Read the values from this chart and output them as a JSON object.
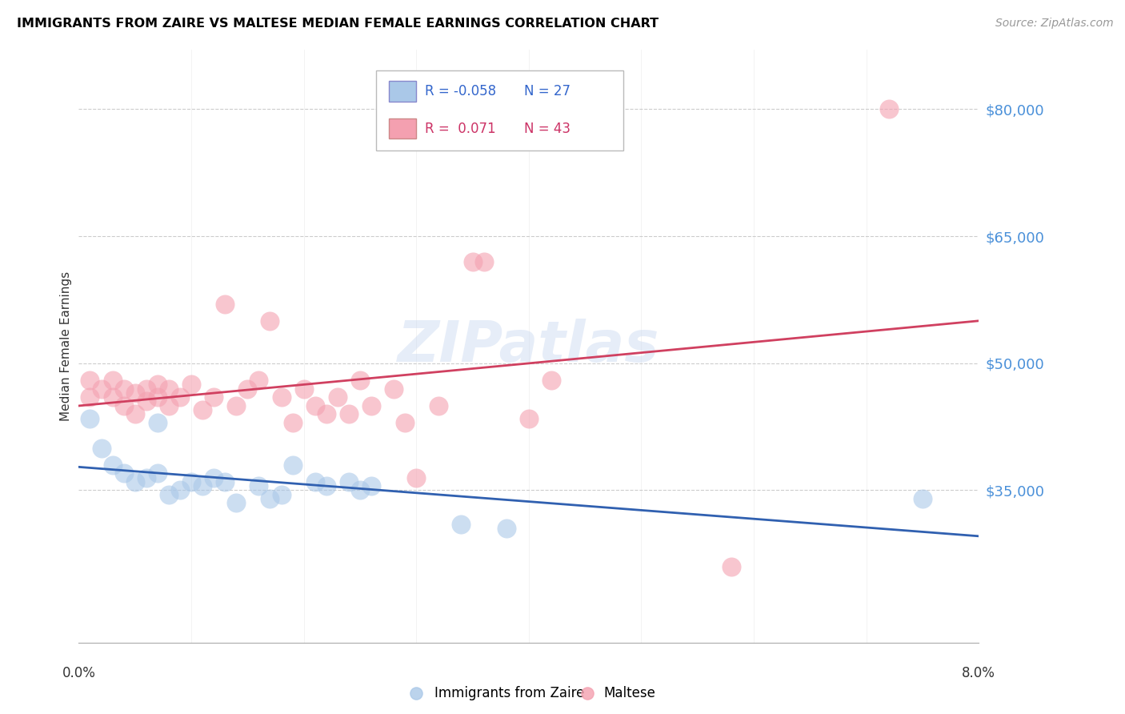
{
  "title": "IMMIGRANTS FROM ZAIRE VS MALTESE MEDIAN FEMALE EARNINGS CORRELATION CHART",
  "source": "Source: ZipAtlas.com",
  "ylabel": "Median Female Earnings",
  "xlim": [
    0.0,
    0.08
  ],
  "ylim": [
    17000,
    87000
  ],
  "legend_blue_r": "-0.058",
  "legend_blue_n": "27",
  "legend_pink_r": "0.071",
  "legend_pink_n": "43",
  "legend_label_blue": "Immigrants from Zaire",
  "legend_label_pink": "Maltese",
  "blue_color": "#aac8e8",
  "pink_color": "#f4a0b0",
  "blue_line_color": "#3060b0",
  "pink_line_color": "#d04060",
  "grid_vals": [
    35000,
    50000,
    65000,
    80000
  ],
  "blue_scatter_x": [
    0.001,
    0.002,
    0.003,
    0.004,
    0.005,
    0.006,
    0.007,
    0.007,
    0.008,
    0.009,
    0.01,
    0.011,
    0.012,
    0.013,
    0.014,
    0.016,
    0.017,
    0.018,
    0.019,
    0.021,
    0.022,
    0.024,
    0.025,
    0.026,
    0.034,
    0.038,
    0.075
  ],
  "blue_scatter_y": [
    43500,
    40000,
    38000,
    37000,
    36000,
    36500,
    37000,
    43000,
    34500,
    35000,
    36000,
    35500,
    36500,
    36000,
    33500,
    35500,
    34000,
    34500,
    38000,
    36000,
    35500,
    36000,
    35000,
    35500,
    31000,
    30500,
    34000
  ],
  "pink_scatter_x": [
    0.001,
    0.001,
    0.002,
    0.003,
    0.003,
    0.004,
    0.004,
    0.005,
    0.005,
    0.006,
    0.006,
    0.007,
    0.007,
    0.008,
    0.008,
    0.009,
    0.01,
    0.011,
    0.012,
    0.013,
    0.014,
    0.015,
    0.016,
    0.017,
    0.018,
    0.019,
    0.02,
    0.021,
    0.022,
    0.023,
    0.024,
    0.025,
    0.026,
    0.028,
    0.029,
    0.03,
    0.032,
    0.035,
    0.036,
    0.04,
    0.042,
    0.058,
    0.072
  ],
  "pink_scatter_y": [
    46000,
    48000,
    47000,
    46000,
    48000,
    45000,
    47000,
    46500,
    44000,
    47000,
    45500,
    46000,
    47500,
    47000,
    45000,
    46000,
    47500,
    44500,
    46000,
    57000,
    45000,
    47000,
    48000,
    55000,
    46000,
    43000,
    47000,
    45000,
    44000,
    46000,
    44000,
    48000,
    45000,
    47000,
    43000,
    36500,
    45000,
    62000,
    62000,
    43500,
    48000,
    26000,
    80000
  ]
}
